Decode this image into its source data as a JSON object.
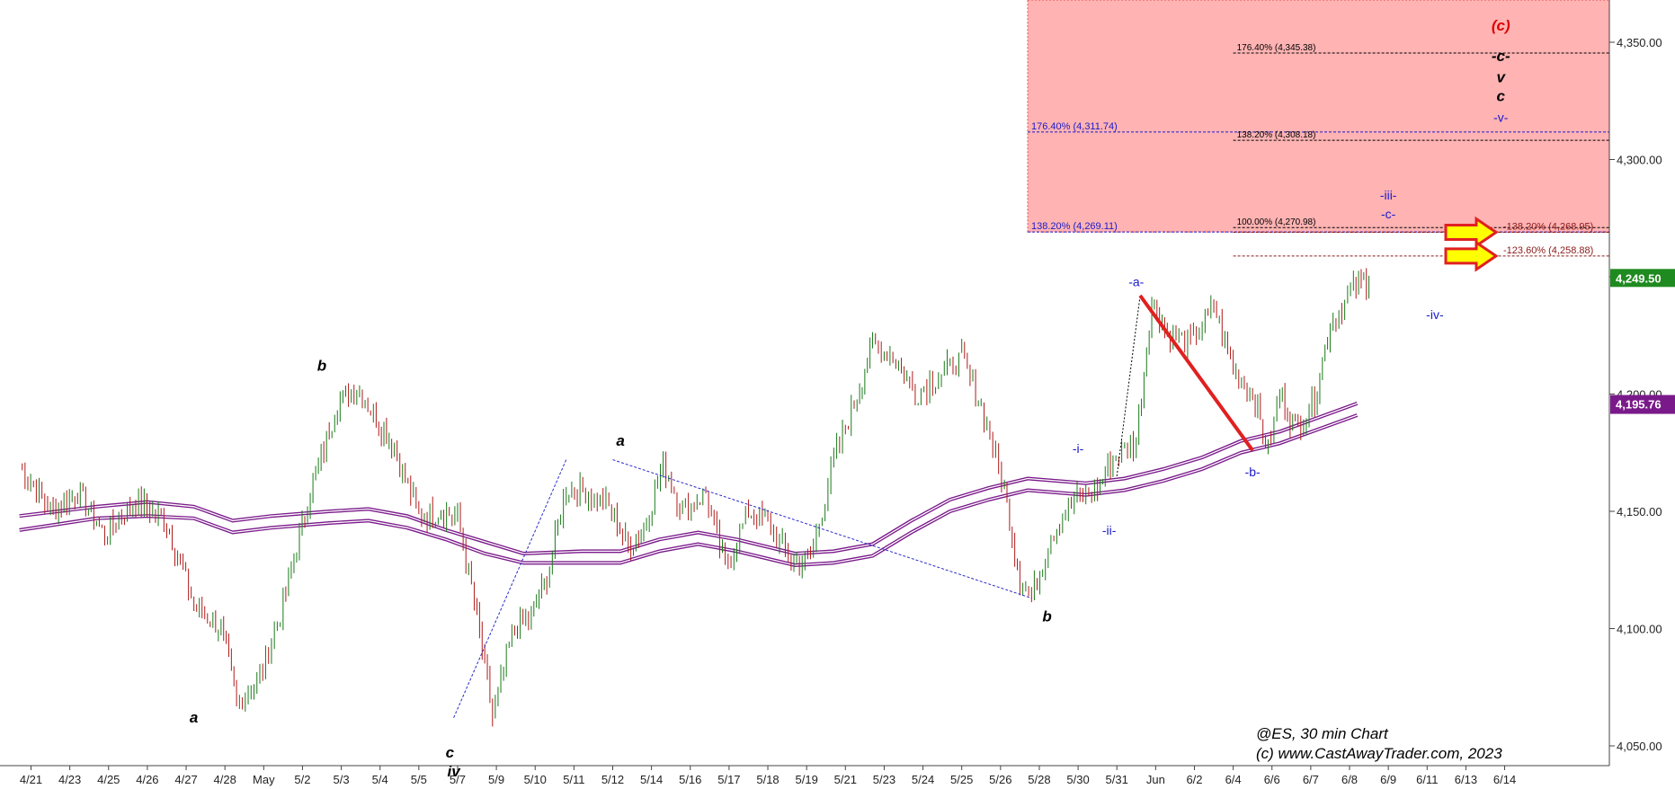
{
  "chart_data": {
    "type": "candlestick",
    "y_range": [
      4040,
      4365
    ],
    "y_ticks": [
      "4,350.00",
      "4,300.00",
      "4,250.00",
      "4,200.00",
      "4,150.00",
      "4,100.00",
      "4,050.00"
    ],
    "y_tick_values": [
      4350,
      4300,
      4250,
      4200,
      4150,
      4100,
      4050
    ],
    "x_ticks": [
      "4/21",
      "4/23",
      "4/25",
      "4/26",
      "4/27",
      "4/28",
      "May",
      "5/2",
      "5/3",
      "5/4",
      "5/5",
      "5/7",
      "5/9",
      "5/10",
      "5/11",
      "5/12",
      "5/14",
      "5/16",
      "5/17",
      "5/18",
      "5/19",
      "5/21",
      "5/23",
      "5/24",
      "5/25",
      "5/26",
      "5/28",
      "5/30",
      "5/31",
      "Jun",
      "6/2",
      "6/4",
      "6/6",
      "6/7",
      "6/8",
      "6/9",
      "6/11",
      "6/13",
      "6/14"
    ],
    "price_path": [
      [
        0,
        4170
      ],
      [
        0.8,
        4150
      ],
      [
        1.5,
        4158
      ],
      [
        2.2,
        4140
      ],
      [
        3,
        4155
      ],
      [
        3.8,
        4145
      ],
      [
        4.5,
        4110
      ],
      [
        5.2,
        4100
      ],
      [
        5.6,
        4068
      ],
      [
        6.2,
        4080
      ],
      [
        6.8,
        4110
      ],
      [
        7.5,
        4158
      ],
      [
        8.2,
        4196
      ],
      [
        8.7,
        4203
      ],
      [
        9.2,
        4190
      ],
      [
        9.6,
        4180
      ],
      [
        10.3,
        4148
      ],
      [
        10.8,
        4150
      ],
      [
        11.3,
        4148
      ],
      [
        11.8,
        4105
      ],
      [
        12.2,
        4062
      ],
      [
        12.7,
        4098
      ],
      [
        13.2,
        4105
      ],
      [
        13.6,
        4122
      ],
      [
        14.1,
        4160
      ],
      [
        14.6,
        4158
      ],
      [
        15.2,
        4152
      ],
      [
        15.7,
        4135
      ],
      [
        16.1,
        4142
      ],
      [
        16.6,
        4170
      ],
      [
        17.1,
        4150
      ],
      [
        17.7,
        4158
      ],
      [
        18.2,
        4125
      ],
      [
        18.8,
        4150
      ],
      [
        19.3,
        4145
      ],
      [
        19.9,
        4128
      ],
      [
        20.4,
        4130
      ],
      [
        21,
        4172
      ],
      [
        21.6,
        4200
      ],
      [
        22,
        4222
      ],
      [
        22.6,
        4215
      ],
      [
        23.1,
        4200
      ],
      [
        23.7,
        4208
      ],
      [
        24.3,
        4215
      ],
      [
        24.8,
        4195
      ],
      [
        25.4,
        4160
      ],
      [
        25.8,
        4120
      ],
      [
        26.1,
        4113
      ],
      [
        26.6,
        4140
      ],
      [
        27.2,
        4155
      ],
      [
        27.8,
        4160
      ],
      [
        28.2,
        4172
      ],
      [
        28.8,
        4180
      ],
      [
        29.2,
        4240
      ],
      [
        29.6,
        4225
      ],
      [
        30.2,
        4222
      ],
      [
        30.8,
        4238
      ],
      [
        31.3,
        4210
      ],
      [
        31.8,
        4200
      ],
      [
        32.2,
        4176
      ],
      [
        32.5,
        4200
      ],
      [
        32.9,
        4185
      ],
      [
        33.4,
        4198
      ],
      [
        33.8,
        4230
      ],
      [
        34.4,
        4245
      ],
      [
        34.8,
        4249.5
      ]
    ],
    "moving_average": [
      [
        0,
        4148
      ],
      [
        2,
        4152
      ],
      [
        3.3,
        4154
      ],
      [
        4.5,
        4152
      ],
      [
        5.5,
        4146
      ],
      [
        6.5,
        4148
      ],
      [
        8,
        4150
      ],
      [
        9,
        4151
      ],
      [
        10,
        4148
      ],
      [
        11,
        4142
      ],
      [
        12,
        4137
      ],
      [
        13,
        4132
      ],
      [
        14.5,
        4133
      ],
      [
        15.5,
        4133
      ],
      [
        16.5,
        4138
      ],
      [
        17.5,
        4141
      ],
      [
        18.5,
        4138
      ],
      [
        20,
        4132
      ],
      [
        21,
        4133
      ],
      [
        22,
        4136
      ],
      [
        23,
        4146
      ],
      [
        24,
        4155
      ],
      [
        25,
        4160
      ],
      [
        26,
        4164
      ],
      [
        27.5,
        4162
      ],
      [
        28.5,
        4164
      ],
      [
        29.5,
        4168
      ],
      [
        30.5,
        4173
      ],
      [
        31.5,
        4180
      ],
      [
        32.5,
        4184
      ],
      [
        33.5,
        4190
      ],
      [
        34.5,
        4196
      ]
    ],
    "moving_average_2": [
      [
        0,
        4142
      ],
      [
        2,
        4147
      ],
      [
        3.3,
        4148
      ],
      [
        4.5,
        4147
      ],
      [
        5.5,
        4141
      ],
      [
        6.5,
        4143
      ],
      [
        8,
        4145
      ],
      [
        9,
        4146
      ],
      [
        10,
        4143
      ],
      [
        11,
        4138
      ],
      [
        12,
        4132
      ],
      [
        13,
        4128
      ],
      [
        14.5,
        4128
      ],
      [
        15.5,
        4128
      ],
      [
        16.5,
        4133
      ],
      [
        17.5,
        4136
      ],
      [
        18.5,
        4133
      ],
      [
        20,
        4127
      ],
      [
        21,
        4128
      ],
      [
        22,
        4131
      ],
      [
        23,
        4141
      ],
      [
        24,
        4150
      ],
      [
        25,
        4155
      ],
      [
        26,
        4159
      ],
      [
        27.5,
        4157
      ],
      [
        28.5,
        4159
      ],
      [
        29.5,
        4163
      ],
      [
        30.5,
        4168
      ],
      [
        31.5,
        4175
      ],
      [
        32.5,
        4179
      ],
      [
        33.5,
        4185
      ],
      [
        34.5,
        4191
      ]
    ],
    "last_price_label": "4,249.50",
    "ma_value_label": "4,195.76",
    "target_zone": {
      "x_start": 26.5,
      "x_end": 41.5,
      "y_low": 4269.11,
      "y_high": 4365
    },
    "fib_levels": [
      {
        "label": "176.40% (4,311.74)",
        "value": 4311.74,
        "color": "#1a1acc"
      },
      {
        "label": "138.20% (4,269.11)",
        "value": 4269.11,
        "color": "#1a1acc"
      },
      {
        "label": "176.40% (4,345.38)",
        "value": 4345.38,
        "color": "#000000"
      },
      {
        "label": "138.20% (4,308.18)",
        "value": 4308.18,
        "color": "#000000"
      },
      {
        "label": "100.00% (4,270.98)",
        "value": 4270.98,
        "color": "#000000"
      },
      {
        "label": "-138.20% (4,268.95)",
        "value": 4268.95,
        "color": "#8b1a1a"
      },
      {
        "label": "-123.60% (4,258.88)",
        "value": 4258.88,
        "color": "#8b1a1a"
      }
    ],
    "wave_labels": [
      {
        "text": "a",
        "x": 4.5,
        "y": 4060,
        "color": "#000000"
      },
      {
        "text": "b",
        "x": 7.8,
        "y": 4210,
        "color": "#000000"
      },
      {
        "text": "c",
        "x": 11.1,
        "y": 4045,
        "color": "#000000"
      },
      {
        "text": "iv",
        "x": 11.2,
        "y": 4037,
        "color": "#000000"
      },
      {
        "text": "a",
        "x": 15.5,
        "y": 4178,
        "color": "#000000"
      },
      {
        "text": "b",
        "x": 26.5,
        "y": 4103,
        "color": "#000000"
      },
      {
        "text": "-i-",
        "x": 27.3,
        "y": 4175,
        "color": "#1a1acc"
      },
      {
        "text": "-ii-",
        "x": 28.1,
        "y": 4140,
        "color": "#1a1acc"
      },
      {
        "text": "-a-",
        "x": 28.8,
        "y": 4246,
        "color": "#1a1acc"
      },
      {
        "text": "-b-",
        "x": 31.8,
        "y": 4165,
        "color": "#1a1acc"
      },
      {
        "text": "-iii-",
        "x": 35.3,
        "y": 4283,
        "color": "#1a1acc"
      },
      {
        "text": "-c-",
        "x": 35.3,
        "y": 4275,
        "color": "#1a1acc"
      },
      {
        "text": "-iv-",
        "x": 36.5,
        "y": 4232,
        "color": "#1a1acc"
      },
      {
        "text": "(c)",
        "x": 38.2,
        "y": 4355,
        "color": "#dd0000"
      },
      {
        "text": "-c-",
        "x": 38.2,
        "y": 4342,
        "color": "#000000"
      },
      {
        "text": "v",
        "x": 38.2,
        "y": 4333,
        "color": "#000000"
      },
      {
        "text": "c",
        "x": 38.2,
        "y": 4325,
        "color": "#000000"
      },
      {
        "text": "-v-",
        "x": 38.2,
        "y": 4316,
        "color": "#1a1acc"
      }
    ],
    "footer_line1": "@ES, 30 min Chart",
    "footer_line2": "(c) www.CastAwayTrader.com, 2023"
  }
}
